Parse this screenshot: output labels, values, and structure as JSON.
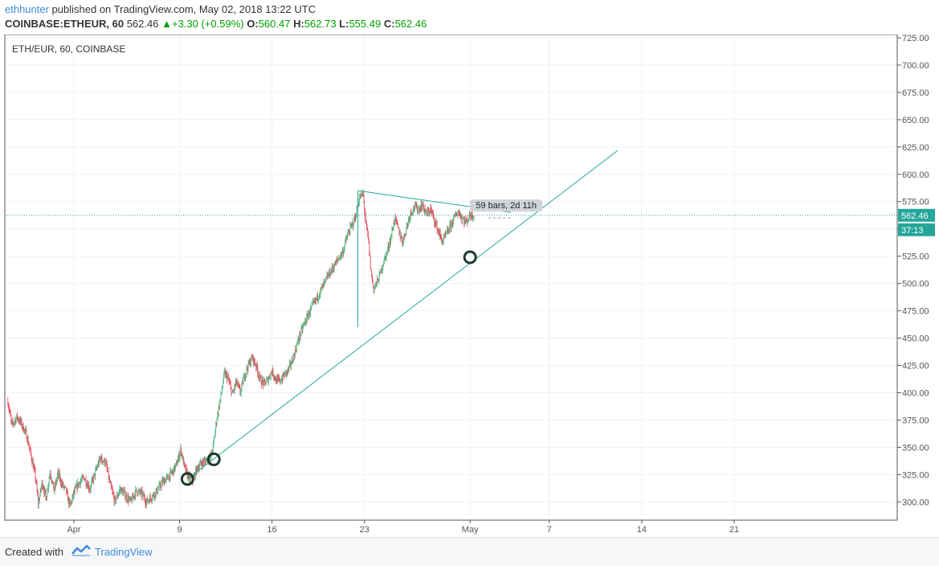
{
  "header": {
    "user": "ethhunter",
    "published_text": " published on TradingView.com, May 02, 2018 13:22 UTC"
  },
  "symbol_row": {
    "symbol": "COINBASE:ETHEUR, 60",
    "last": "562.46",
    "change": "+3.30 (+0.59%)",
    "o_label": "O:",
    "o_value": "560.47",
    "h_label": "H:",
    "h_value": "562.73",
    "l_label": "L:",
    "l_value": "555.49",
    "c_label": "C:",
    "c_value": "562.46",
    "up_color": "#00a000"
  },
  "footer": {
    "created_with": "Created with",
    "brand": "TradingView"
  },
  "chart_data": {
    "type": "candlestick",
    "title": "ETH/EUR, 60, COINBASE",
    "ylim": [
      280,
      725
    ],
    "y_ticks": [
      "725.00",
      "700.00",
      "675.00",
      "650.00",
      "625.00",
      "600.00",
      "575.00",
      "550.00",
      "525.00",
      "500.00",
      "475.00",
      "450.00",
      "425.00",
      "400.00",
      "375.00",
      "350.00",
      "325.00",
      "300.00"
    ],
    "x_ticks": [
      {
        "label": "Apr",
        "day": 0
      },
      {
        "label": "9",
        "day": 8
      },
      {
        "label": "16",
        "day": 15
      },
      {
        "label": "23",
        "day": 22
      },
      {
        "label": "May",
        "day": 30
      },
      {
        "label": "7",
        "day": 36
      },
      {
        "label": "14",
        "day": 43
      },
      {
        "label": "21",
        "day": 50
      }
    ],
    "grid": true,
    "last_price": "562.46",
    "countdown": "37:13",
    "up_color": "#53b987",
    "down_color": "#eb4d5c",
    "line_color": "#26a69a",
    "price_path": [
      [
        -5.0,
        392
      ],
      [
        -4.7,
        370
      ],
      [
        -4.3,
        378
      ],
      [
        -4.0,
        372
      ],
      [
        -3.6,
        362
      ],
      [
        -3.2,
        340
      ],
      [
        -2.9,
        322
      ],
      [
        -2.7,
        298
      ],
      [
        -2.4,
        318
      ],
      [
        -2.1,
        303
      ],
      [
        -1.8,
        328
      ],
      [
        -1.5,
        310
      ],
      [
        -1.2,
        326
      ],
      [
        -0.9,
        316
      ],
      [
        -0.6,
        310
      ],
      [
        -0.3,
        296
      ],
      [
        0.0,
        308
      ],
      [
        0.4,
        318
      ],
      [
        0.8,
        322
      ],
      [
        1.2,
        312
      ],
      [
        1.6,
        326
      ],
      [
        2.0,
        340
      ],
      [
        2.4,
        336
      ],
      [
        2.7,
        318
      ],
      [
        3.1,
        300
      ],
      [
        3.5,
        312
      ],
      [
        3.9,
        306
      ],
      [
        4.3,
        300
      ],
      [
        4.7,
        310
      ],
      [
        5.1,
        308
      ],
      [
        5.5,
        300
      ],
      [
        5.9,
        305
      ],
      [
        6.3,
        310
      ],
      [
        6.7,
        318
      ],
      [
        7.1,
        322
      ],
      [
        7.5,
        328
      ],
      [
        7.8,
        335
      ],
      [
        8.1,
        348
      ],
      [
        8.4,
        330
      ],
      [
        8.7,
        322
      ],
      [
        9.0,
        320
      ],
      [
        9.3,
        330
      ],
      [
        9.6,
        335
      ],
      [
        10.0,
        338
      ],
      [
        10.4,
        342
      ],
      [
        10.6,
        355
      ],
      [
        10.8,
        375
      ],
      [
        11.1,
        395
      ],
      [
        11.4,
        418
      ],
      [
        11.7,
        412
      ],
      [
        12.0,
        398
      ],
      [
        12.3,
        410
      ],
      [
        12.6,
        400
      ],
      [
        12.9,
        415
      ],
      [
        13.2,
        425
      ],
      [
        13.5,
        432
      ],
      [
        13.8,
        425
      ],
      [
        14.1,
        412
      ],
      [
        14.4,
        408
      ],
      [
        14.7,
        412
      ],
      [
        15.0,
        420
      ],
      [
        15.3,
        412
      ],
      [
        15.6,
        410
      ],
      [
        15.9,
        416
      ],
      [
        16.2,
        420
      ],
      [
        16.5,
        428
      ],
      [
        16.8,
        440
      ],
      [
        17.1,
        452
      ],
      [
        17.4,
        462
      ],
      [
        17.7,
        470
      ],
      [
        18.0,
        478
      ],
      [
        18.3,
        484
      ],
      [
        18.6,
        492
      ],
      [
        18.9,
        498
      ],
      [
        19.2,
        506
      ],
      [
        19.5,
        512
      ],
      [
        19.8,
        518
      ],
      [
        20.1,
        524
      ],
      [
        20.4,
        530
      ],
      [
        20.7,
        544
      ],
      [
        21.0,
        552
      ],
      [
        21.3,
        560
      ],
      [
        21.6,
        578
      ],
      [
        21.9,
        582
      ],
      [
        22.1,
        555
      ],
      [
        22.3,
        540
      ],
      [
        22.5,
        510
      ],
      [
        22.7,
        495
      ],
      [
        22.9,
        500
      ],
      [
        23.1,
        505
      ],
      [
        23.4,
        518
      ],
      [
        23.7,
        528
      ],
      [
        24.0,
        542
      ],
      [
        24.3,
        560
      ],
      [
        24.6,
        548
      ],
      [
        24.9,
        538
      ],
      [
        25.2,
        552
      ],
      [
        25.5,
        565
      ],
      [
        25.8,
        570
      ],
      [
        26.1,
        568
      ],
      [
        26.4,
        572
      ],
      [
        26.7,
        563
      ],
      [
        27.0,
        568
      ],
      [
        27.3,
        558
      ],
      [
        27.6,
        548
      ],
      [
        27.9,
        538
      ],
      [
        28.2,
        545
      ],
      [
        28.5,
        552
      ],
      [
        28.8,
        560
      ],
      [
        29.1,
        566
      ],
      [
        29.4,
        560
      ],
      [
        29.7,
        556
      ],
      [
        30.0,
        563
      ],
      [
        30.3,
        562.46
      ]
    ],
    "annotations": {
      "triangle_label": "59 bars, 2d 11h",
      "trend_lines": [
        {
          "from": [
            8.6,
            321
          ],
          "to": [
            41.2,
            622
          ]
        },
        {
          "from": [
            21.5,
            585
          ],
          "to": [
            33.1,
            565
          ]
        },
        {
          "from": [
            21.5,
            585
          ],
          "to": [
            21.5,
            460
          ]
        }
      ],
      "circled_pivots": [
        [
          8.6,
          321
        ],
        [
          10.6,
          339
        ],
        [
          30.0,
          524
        ]
      ]
    }
  }
}
